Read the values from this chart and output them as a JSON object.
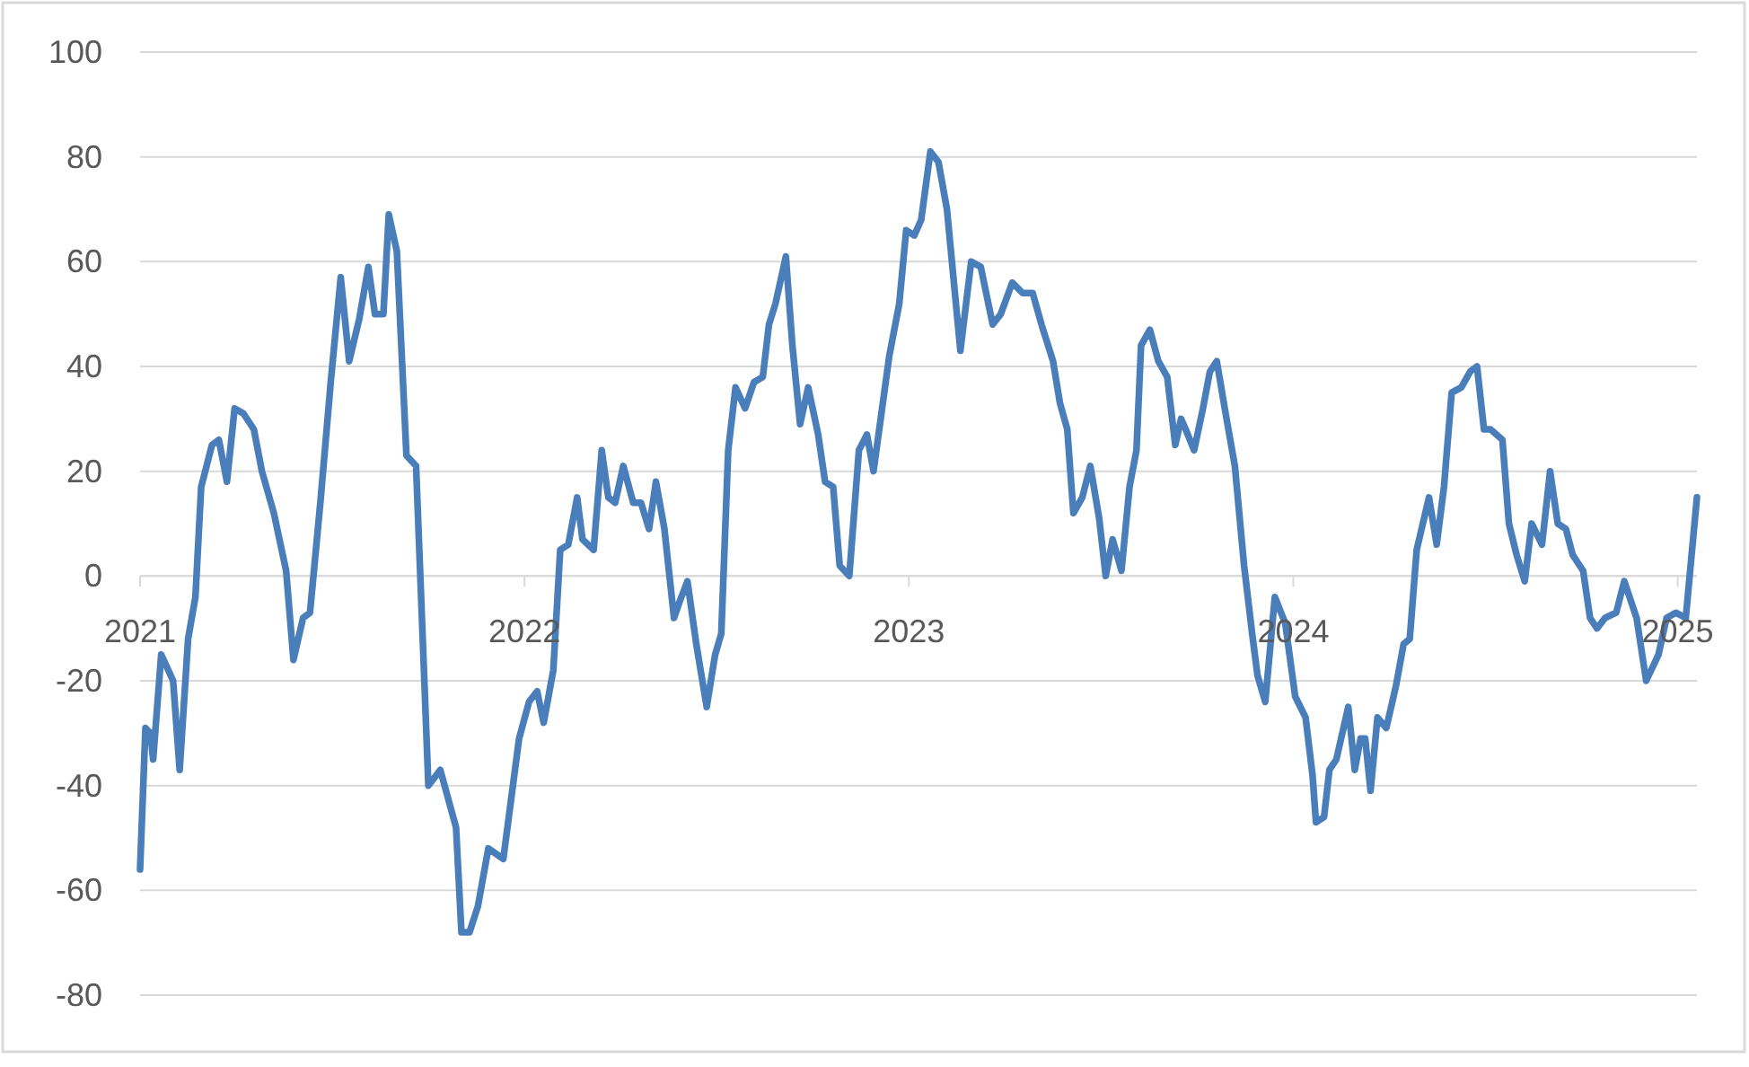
{
  "chart_data": {
    "type": "line",
    "x": [
      2021.0,
      2021.014,
      2021.027,
      2021.034,
      2021.055,
      2021.086,
      2021.103,
      2021.125,
      2021.144,
      2021.159,
      2021.187,
      2021.205,
      2021.226,
      2021.246,
      2021.269,
      2021.296,
      2021.317,
      2021.348,
      2021.38,
      2021.399,
      2021.424,
      2021.442,
      2021.469,
      2021.496,
      2021.522,
      2021.544,
      2021.57,
      2021.594,
      2021.611,
      2021.633,
      2021.647,
      2021.668,
      2021.693,
      2021.718,
      2021.75,
      2021.781,
      2021.822,
      2021.836,
      2021.857,
      2021.879,
      2021.906,
      2021.945,
      2021.986,
      2022.012,
      2022.033,
      2022.05,
      2022.075,
      2022.093,
      2022.114,
      2022.137,
      2022.151,
      2022.18,
      2022.201,
      2022.218,
      2022.236,
      2022.257,
      2022.283,
      2022.303,
      2022.324,
      2022.342,
      2022.364,
      2022.389,
      2022.403,
      2022.424,
      2022.447,
      2022.474,
      2022.496,
      2022.512,
      2022.53,
      2022.549,
      2022.574,
      2022.597,
      2022.62,
      2022.636,
      2022.653,
      2022.68,
      2022.697,
      2022.717,
      2022.738,
      2022.764,
      2022.782,
      2022.803,
      2022.82,
      2022.845,
      2022.87,
      2022.891,
      2022.908,
      2022.949,
      2022.975,
      2022.993,
      2023.014,
      2023.032,
      2023.056,
      2023.077,
      2023.099,
      2023.134,
      2023.162,
      2023.187,
      2023.218,
      2023.239,
      2023.269,
      2023.296,
      2023.322,
      2023.345,
      2023.375,
      2023.393,
      2023.412,
      2023.428,
      2023.451,
      2023.472,
      2023.495,
      2023.512,
      2023.53,
      2023.553,
      2023.574,
      2023.592,
      2023.604,
      2023.627,
      2023.649,
      2023.672,
      2023.693,
      2023.708,
      2023.72,
      2023.742,
      2023.765,
      2023.783,
      2023.801,
      2023.824,
      2023.848,
      2023.872,
      2023.893,
      2023.907,
      2023.927,
      2023.952,
      2023.979,
      2024.005,
      2024.032,
      2024.05,
      2024.059,
      2024.08,
      2024.094,
      2024.112,
      2024.143,
      2024.16,
      2024.175,
      2024.187,
      2024.201,
      2024.219,
      2024.242,
      2024.267,
      2024.287,
      2024.303,
      2024.321,
      2024.353,
      2024.373,
      2024.392,
      2024.412,
      2024.437,
      2024.46,
      2024.478,
      2024.496,
      2024.513,
      2024.544,
      2024.561,
      2024.581,
      2024.602,
      2024.62,
      2024.647,
      2024.668,
      2024.688,
      2024.709,
      2024.727,
      2024.754,
      2024.772,
      2024.79,
      2024.811,
      2024.84,
      2024.861,
      2024.893,
      2024.918,
      2024.95,
      2024.971,
      2024.995,
      2025.021,
      2025.05
    ],
    "series": [
      {
        "color": "#4a7ebb",
        "values": [
          -56,
          -29,
          -30,
          -35,
          -15,
          -20,
          -37,
          -12,
          -4,
          17,
          25,
          26,
          18,
          32,
          31,
          28,
          20,
          12,
          1,
          -16,
          -8,
          -7,
          14,
          37,
          57,
          41,
          49,
          59,
          50,
          50,
          69,
          62,
          23,
          21,
          -40,
          -37,
          -48,
          -68,
          -68,
          -63,
          -52,
          -54,
          -31,
          -24,
          -22,
          -28,
          -18,
          5,
          6,
          15,
          7,
          5,
          24,
          15,
          14,
          21,
          14,
          14,
          9,
          18,
          9,
          -8,
          -5,
          -1,
          -13,
          -25,
          -15,
          -11,
          24,
          36,
          32,
          37,
          38,
          48,
          52,
          61,
          44,
          29,
          36,
          27,
          18,
          17,
          2,
          0,
          24,
          27,
          20,
          42,
          52,
          66,
          65,
          68,
          81,
          79,
          70,
          43,
          60,
          59,
          48,
          50,
          56,
          54,
          54,
          48,
          41,
          33,
          28,
          12,
          15,
          21,
          11,
          0,
          7,
          1,
          17,
          24,
          44,
          47,
          41,
          38,
          25,
          30,
          28,
          24,
          32,
          39,
          41,
          31,
          21,
          2,
          -11,
          -19,
          -24,
          -4,
          -9,
          -23,
          -27,
          -38,
          -47,
          -46,
          -37,
          -35,
          -25,
          -37,
          -31,
          -31,
          -41,
          -27,
          -29,
          -21,
          -13,
          -12,
          5,
          15,
          6,
          17,
          35,
          36,
          39,
          40,
          28,
          28,
          26,
          10,
          4,
          -1,
          10,
          6,
          20,
          10,
          9,
          4,
          1,
          -8,
          -10,
          -8,
          -7,
          -1,
          -8,
          -20,
          -15,
          -8,
          -7,
          -8,
          15
        ]
      }
    ],
    "xlim": [
      2021,
      2025.05
    ],
    "xticks": [
      2021,
      2022,
      2023,
      2024,
      2025
    ],
    "ylim": [
      -80,
      100
    ],
    "yticks": [
      -80,
      -60,
      -40,
      -20,
      0,
      20,
      40,
      60,
      80,
      100
    ],
    "grid": "y",
    "line_style": "solid"
  }
}
